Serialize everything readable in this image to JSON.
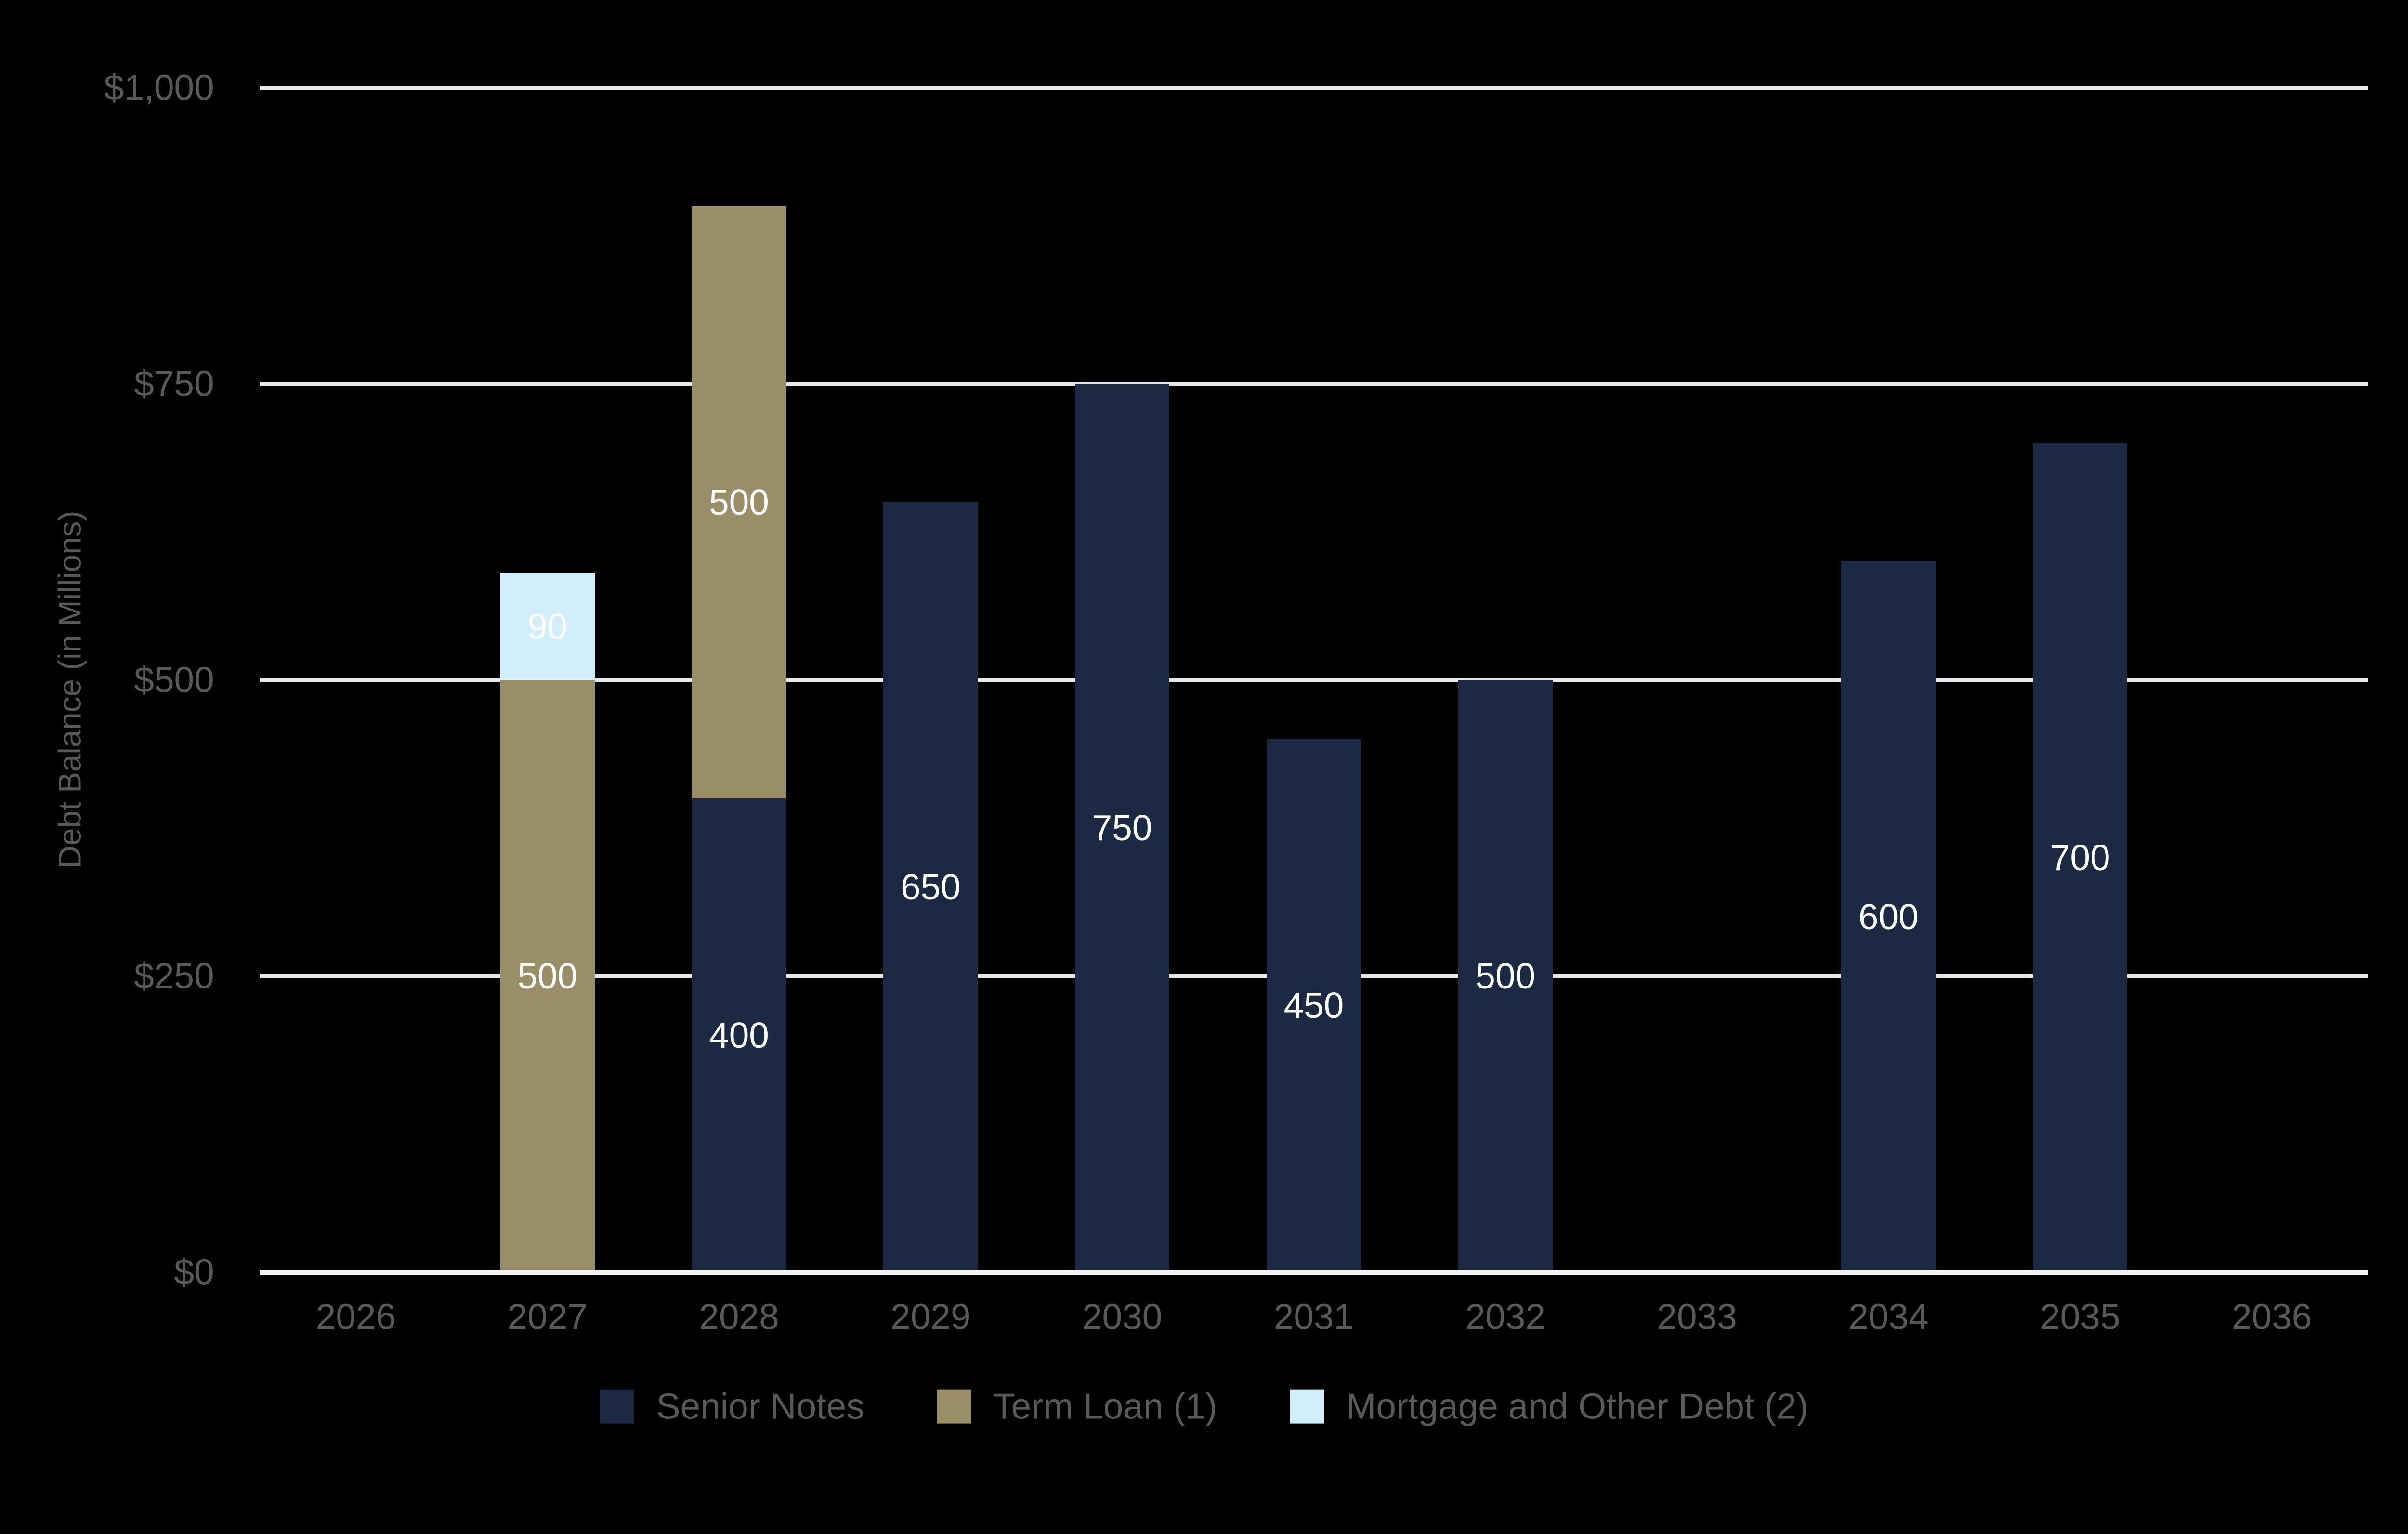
{
  "chart_data": {
    "type": "bar",
    "stacked": true,
    "title": "",
    "xlabel": "",
    "ylabel": "Debt Balance (in Millions)",
    "ylim": [
      0,
      1000
    ],
    "grid": true,
    "legend_position": "bottom",
    "show_segment_value_labels": true,
    "yticks": [
      {
        "value": 0,
        "label": "$0"
      },
      {
        "value": 250,
        "label": "$250"
      },
      {
        "value": 500,
        "label": "$500"
      },
      {
        "value": 750,
        "label": "$750"
      },
      {
        "value": 1000,
        "label": "$1,000"
      }
    ],
    "categories": [
      "2026",
      "2027",
      "2028",
      "2029",
      "2030",
      "2031",
      "2032",
      "2033",
      "2034",
      "2035",
      "2036"
    ],
    "series": [
      {
        "name": "Senior Notes",
        "color": "#1b2942",
        "values": [
          0,
          0,
          400,
          650,
          750,
          450,
          500,
          0,
          600,
          700,
          0
        ]
      },
      {
        "name": "Term Loan (1)",
        "color": "#9a8e68",
        "values": [
          0,
          500,
          500,
          0,
          0,
          0,
          0,
          0,
          0,
          0,
          0
        ]
      },
      {
        "name": "Mortgage and Other Debt (2)",
        "color": "#d3eefb",
        "values": [
          0,
          90,
          0,
          0,
          0,
          0,
          0,
          0,
          0,
          0,
          0
        ]
      }
    ]
  },
  "colors": {
    "background": "#000000",
    "gridline": "#e8e8e8",
    "axis_baseline": "#f2f2f2",
    "axis_text": "#595959",
    "value_label_text": "#ffffff"
  }
}
